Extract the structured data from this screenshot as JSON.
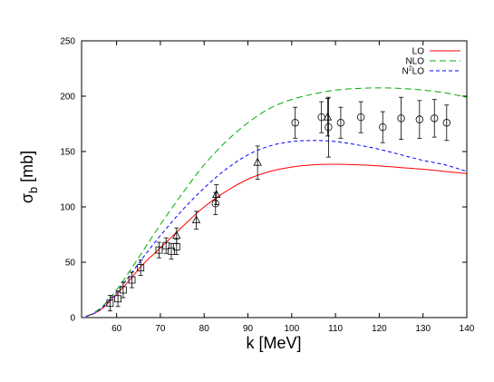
{
  "chart_data": {
    "type": "line",
    "xlabel": "k [MeV]",
    "ylabel": "σb [mb]",
    "ylabel_main": "σ",
    "ylabel_sub": "b",
    "ylabel_unit": " [mb]",
    "xlim": [
      52,
      140
    ],
    "ylim": [
      0,
      250
    ],
    "xticks": [
      60,
      70,
      80,
      90,
      100,
      110,
      120,
      130,
      140
    ],
    "yticks": [
      0,
      50,
      100,
      150,
      200,
      250
    ],
    "grid": false,
    "legend_position": "top-right",
    "series": [
      {
        "name": "LO",
        "label_main": "LO",
        "color": "#ff0000",
        "style": "solid",
        "x": [
          53,
          55,
          57,
          60,
          63,
          66,
          70,
          75,
          80,
          85,
          90,
          95,
          100,
          105,
          110,
          115,
          120,
          125,
          130,
          135,
          140
        ],
        "y": [
          1,
          4,
          9,
          21,
          34,
          48,
          63,
          82,
          100,
          114,
          125,
          132,
          136,
          138,
          138.5,
          138,
          137,
          135.5,
          134,
          132,
          130
        ]
      },
      {
        "name": "NLO",
        "label_main": "NLO",
        "color": "#00aa00",
        "style": "dashed",
        "x": [
          53,
          55,
          57,
          60,
          63,
          66,
          70,
          75,
          80,
          85,
          90,
          95,
          100,
          105,
          110,
          115,
          120,
          125,
          130,
          135,
          140
        ],
        "y": [
          1,
          5,
          11,
          25,
          42,
          60,
          84,
          112,
          138,
          159,
          176,
          189,
          197,
          202,
          205.5,
          207,
          207.5,
          207,
          205.5,
          203,
          199
        ]
      },
      {
        "name": "N2LO",
        "label_main": "N",
        "label_sup": "2",
        "label_rest": "LO",
        "color": "#0000ff",
        "style": "dashed",
        "x": [
          53,
          55,
          57,
          60,
          63,
          66,
          70,
          75,
          80,
          85,
          90,
          95,
          100,
          105,
          110,
          115,
          120,
          125,
          130,
          135,
          140
        ],
        "y": [
          1,
          4,
          10,
          23,
          38,
          54,
          74,
          97,
          117,
          134,
          147,
          155,
          159,
          160,
          159,
          156,
          152,
          147,
          142,
          138,
          132
        ]
      }
    ],
    "data_sets": [
      {
        "marker": "square",
        "points": [
          {
            "x": 58.5,
            "y": 13,
            "err": 7
          },
          {
            "x": 60.3,
            "y": 17,
            "err": 7
          },
          {
            "x": 61.5,
            "y": 25,
            "err": 7
          },
          {
            "x": 63.5,
            "y": 34,
            "err": 7
          },
          {
            "x": 65.5,
            "y": 45,
            "err": 7
          },
          {
            "x": 69.7,
            "y": 61,
            "err": 7
          },
          {
            "x": 71.3,
            "y": 65,
            "err": 7
          },
          {
            "x": 72.5,
            "y": 60,
            "err": 7
          },
          {
            "x": 73.7,
            "y": 64,
            "err": 7
          }
        ]
      },
      {
        "marker": "triangle",
        "points": [
          {
            "x": 73.7,
            "y": 74,
            "err": 7
          },
          {
            "x": 78.2,
            "y": 88,
            "err": 8
          },
          {
            "x": 82.8,
            "y": 111,
            "err": 9
          },
          {
            "x": 92.2,
            "y": 140,
            "err": 15
          },
          {
            "x": 108.2,
            "y": 181,
            "err": 17
          }
        ]
      },
      {
        "marker": "circle",
        "points": [
          {
            "x": 82.6,
            "y": 103,
            "err": 10
          },
          {
            "x": 100.8,
            "y": 176,
            "err": 14
          },
          {
            "x": 106.8,
            "y": 181,
            "err": 14
          },
          {
            "x": 108.4,
            "y": 172,
            "err": 27
          },
          {
            "x": 111.2,
            "y": 176,
            "err": 14
          },
          {
            "x": 115.8,
            "y": 181,
            "err": 14
          },
          {
            "x": 120.8,
            "y": 172,
            "err": 14
          },
          {
            "x": 125,
            "y": 180,
            "err": 19
          },
          {
            "x": 129.2,
            "y": 179,
            "err": 17
          },
          {
            "x": 132.6,
            "y": 180,
            "err": 17
          },
          {
            "x": 135.4,
            "y": 176,
            "err": 16
          }
        ]
      }
    ]
  }
}
